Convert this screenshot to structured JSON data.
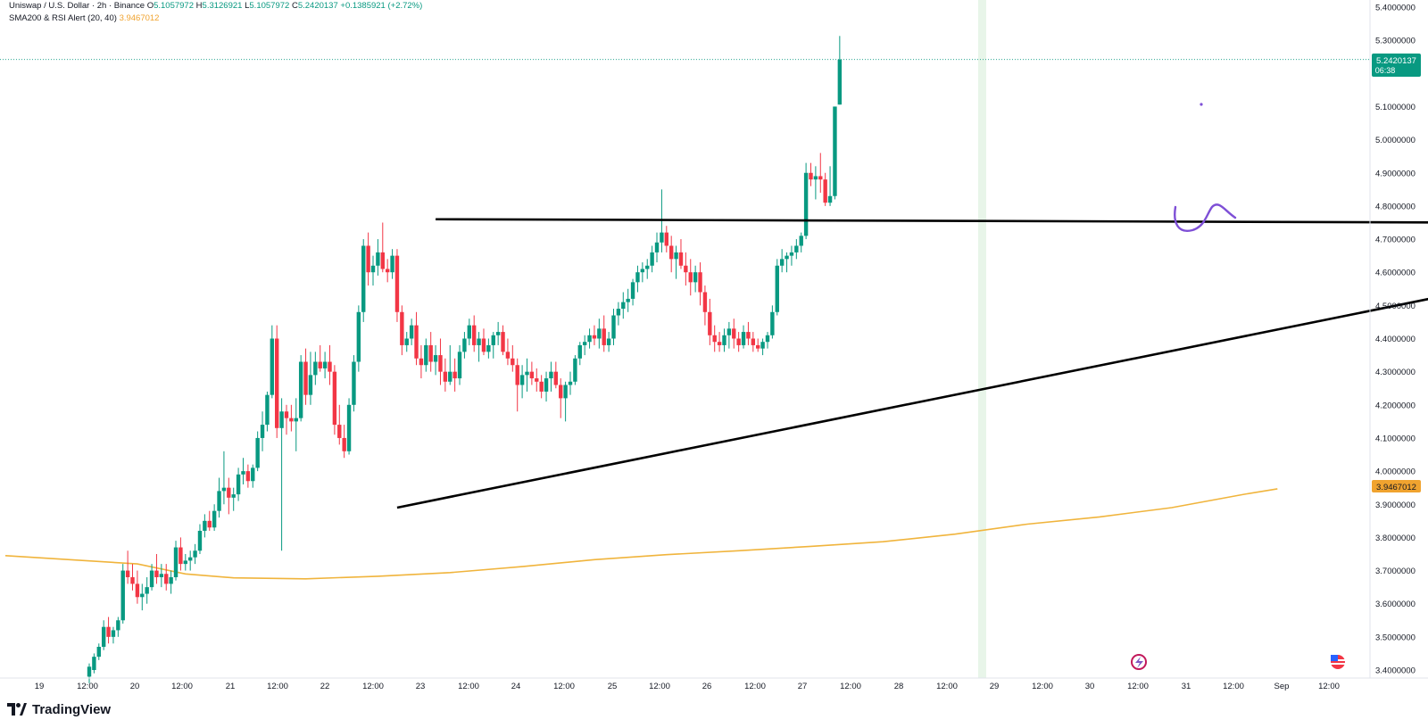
{
  "header": {
    "symbol": "Uniswap / U.S. Dollar · 2h · Binance",
    "o_label": "O",
    "o_value": "5.1057972",
    "h_label": "H",
    "h_value": "5.3126921",
    "l_label": "L",
    "l_value": "5.1057972",
    "c_label": "C",
    "c_value": "5.2420137",
    "change": "+0.1385921 (+2.72%)",
    "indicator_label": "SMA200 & RSI Alert (20, 40)",
    "indicator_value": "3.9467012"
  },
  "price_tag": {
    "price": "5.2420137",
    "countdown": "06:38"
  },
  "sma_tag": {
    "value": "3.9467012"
  },
  "brand": {
    "name": "TradingView"
  },
  "colors": {
    "up": "#089981",
    "down": "#f23645",
    "sma": "#f0b43c",
    "trendline": "#000000",
    "drawing": "#7e4fd6",
    "highlight": "#e8f5e9"
  },
  "chart_data": {
    "type": "candlestick",
    "symbol": "Uniswap / U.S. Dollar",
    "interval": "2h",
    "exchange": "Binance",
    "y_ticks": [
      "5.4000000",
      "5.3000000",
      "5.2000000",
      "5.1000000",
      "5.0000000",
      "4.9000000",
      "4.8000000",
      "4.7000000",
      "4.6000000",
      "4.5000000",
      "4.4000000",
      "4.3000000",
      "4.2000000",
      "4.1000000",
      "4.0000000",
      "3.9000000",
      "3.8000000",
      "3.7000000",
      "3.6000000",
      "3.5000000",
      "3.4000000"
    ],
    "y_range": [
      3.4,
      5.4
    ],
    "x_ticks": [
      "19",
      "12:00",
      "20",
      "12:00",
      "21",
      "12:00",
      "22",
      "12:00",
      "23",
      "12:00",
      "24",
      "12:00",
      "25",
      "12:00",
      "26",
      "12:00",
      "27",
      "12:00",
      "28",
      "12:00",
      "29",
      "12:00",
      "30",
      "12:00",
      "31",
      "12:00",
      "Sep",
      "12:00"
    ],
    "candles": [
      [
        3.38,
        3.42,
        3.36,
        3.41
      ],
      [
        3.4,
        3.45,
        3.39,
        3.44
      ],
      [
        3.44,
        3.48,
        3.43,
        3.47
      ],
      [
        3.47,
        3.55,
        3.46,
        3.53
      ],
      [
        3.53,
        3.56,
        3.48,
        3.5
      ],
      [
        3.5,
        3.53,
        3.48,
        3.52
      ],
      [
        3.52,
        3.56,
        3.5,
        3.55
      ],
      [
        3.55,
        3.72,
        3.54,
        3.7
      ],
      [
        3.7,
        3.76,
        3.66,
        3.68
      ],
      [
        3.68,
        3.72,
        3.64,
        3.66
      ],
      [
        3.66,
        3.7,
        3.6,
        3.62
      ],
      [
        3.62,
        3.66,
        3.58,
        3.63
      ],
      [
        3.63,
        3.68,
        3.6,
        3.65
      ],
      [
        3.65,
        3.72,
        3.64,
        3.7
      ],
      [
        3.7,
        3.75,
        3.66,
        3.68
      ],
      [
        3.68,
        3.72,
        3.65,
        3.69
      ],
      [
        3.69,
        3.72,
        3.64,
        3.66
      ],
      [
        3.66,
        3.7,
        3.63,
        3.68
      ],
      [
        3.68,
        3.79,
        3.67,
        3.77
      ],
      [
        3.77,
        3.8,
        3.7,
        3.72
      ],
      [
        3.72,
        3.75,
        3.7,
        3.73
      ],
      [
        3.73,
        3.76,
        3.7,
        3.74
      ],
      [
        3.74,
        3.78,
        3.72,
        3.76
      ],
      [
        3.76,
        3.84,
        3.75,
        3.82
      ],
      [
        3.82,
        3.87,
        3.8,
        3.85
      ],
      [
        3.85,
        3.88,
        3.82,
        3.83
      ],
      [
        3.83,
        3.9,
        3.82,
        3.88
      ],
      [
        3.88,
        3.98,
        3.86,
        3.94
      ],
      [
        3.94,
        4.06,
        3.9,
        3.95
      ],
      [
        3.95,
        3.98,
        3.87,
        3.92
      ],
      [
        3.92,
        3.95,
        3.88,
        3.93
      ],
      [
        3.93,
        4.01,
        3.91,
        3.99
      ],
      [
        3.99,
        4.04,
        3.96,
        4.0
      ],
      [
        4.0,
        4.02,
        3.95,
        3.97
      ],
      [
        3.97,
        4.02,
        3.95,
        4.01
      ],
      [
        4.01,
        4.12,
        4.0,
        4.1
      ],
      [
        4.1,
        4.18,
        4.06,
        4.14
      ],
      [
        4.14,
        4.24,
        4.12,
        4.23
      ],
      [
        4.23,
        4.44,
        4.22,
        4.4
      ],
      [
        4.4,
        4.44,
        4.1,
        4.13
      ],
      [
        4.13,
        4.22,
        3.76,
        4.18
      ],
      [
        4.18,
        4.2,
        4.11,
        4.16
      ],
      [
        4.16,
        4.2,
        4.12,
        4.15
      ],
      [
        4.15,
        4.22,
        4.06,
        4.16
      ],
      [
        4.16,
        4.35,
        4.15,
        4.33
      ],
      [
        4.33,
        4.37,
        4.2,
        4.23
      ],
      [
        4.23,
        4.36,
        4.2,
        4.29
      ],
      [
        4.29,
        4.36,
        4.26,
        4.33
      ],
      [
        4.33,
        4.38,
        4.3,
        4.31
      ],
      [
        4.31,
        4.36,
        4.28,
        4.33
      ],
      [
        4.33,
        4.38,
        4.26,
        4.3
      ],
      [
        4.3,
        4.32,
        4.11,
        4.14
      ],
      [
        4.14,
        4.2,
        4.08,
        4.1
      ],
      [
        4.1,
        4.14,
        4.04,
        4.06
      ],
      [
        4.06,
        4.22,
        4.05,
        4.2
      ],
      [
        4.2,
        4.35,
        4.18,
        4.33
      ],
      [
        4.33,
        4.5,
        4.3,
        4.48
      ],
      [
        4.48,
        4.7,
        4.45,
        4.68
      ],
      [
        4.68,
        4.72,
        4.56,
        4.6
      ],
      [
        4.6,
        4.65,
        4.56,
        4.62
      ],
      [
        4.62,
        4.7,
        4.59,
        4.66
      ],
      [
        4.66,
        4.75,
        4.6,
        4.61
      ],
      [
        4.61,
        4.64,
        4.57,
        4.6
      ],
      [
        4.6,
        4.67,
        4.58,
        4.65
      ],
      [
        4.65,
        4.67,
        4.45,
        4.48
      ],
      [
        4.48,
        4.5,
        4.35,
        4.38
      ],
      [
        4.38,
        4.42,
        4.36,
        4.4
      ],
      [
        4.4,
        4.46,
        4.38,
        4.44
      ],
      [
        4.44,
        4.48,
        4.32,
        4.34
      ],
      [
        4.34,
        4.38,
        4.28,
        4.32
      ],
      [
        4.32,
        4.4,
        4.3,
        4.38
      ],
      [
        4.38,
        4.42,
        4.3,
        4.33
      ],
      [
        4.33,
        4.38,
        4.29,
        4.35
      ],
      [
        4.35,
        4.4,
        4.26,
        4.3
      ],
      [
        4.3,
        4.34,
        4.24,
        4.27
      ],
      [
        4.27,
        4.38,
        4.26,
        4.3
      ],
      [
        4.3,
        4.34,
        4.24,
        4.28
      ],
      [
        4.28,
        4.38,
        4.26,
        4.36
      ],
      [
        4.36,
        4.42,
        4.34,
        4.4
      ],
      [
        4.4,
        4.46,
        4.38,
        4.44
      ],
      [
        4.44,
        4.47,
        4.36,
        4.38
      ],
      [
        4.38,
        4.42,
        4.33,
        4.4
      ],
      [
        4.4,
        4.43,
        4.35,
        4.36
      ],
      [
        4.36,
        4.4,
        4.34,
        4.38
      ],
      [
        4.38,
        4.42,
        4.34,
        4.41
      ],
      [
        4.41,
        4.45,
        4.38,
        4.42
      ],
      [
        4.42,
        4.44,
        4.35,
        4.36
      ],
      [
        4.36,
        4.4,
        4.32,
        4.34
      ],
      [
        4.34,
        4.38,
        4.3,
        4.32
      ],
      [
        4.32,
        4.34,
        4.18,
        4.26
      ],
      [
        4.26,
        4.32,
        4.22,
        4.29
      ],
      [
        4.29,
        4.34,
        4.24,
        4.3
      ],
      [
        4.3,
        4.33,
        4.26,
        4.28
      ],
      [
        4.28,
        4.31,
        4.24,
        4.27
      ],
      [
        4.27,
        4.29,
        4.22,
        4.24
      ],
      [
        4.24,
        4.3,
        4.21,
        4.28
      ],
      [
        4.28,
        4.33,
        4.24,
        4.3
      ],
      [
        4.3,
        4.33,
        4.25,
        4.26
      ],
      [
        4.26,
        4.28,
        4.16,
        4.22
      ],
      [
        4.22,
        4.27,
        4.15,
        4.26
      ],
      [
        4.26,
        4.3,
        4.23,
        4.27
      ],
      [
        4.27,
        4.35,
        4.26,
        4.34
      ],
      [
        4.34,
        4.39,
        4.32,
        4.38
      ],
      [
        4.38,
        4.41,
        4.35,
        4.39
      ],
      [
        4.39,
        4.43,
        4.37,
        4.41
      ],
      [
        4.41,
        4.44,
        4.38,
        4.4
      ],
      [
        4.4,
        4.46,
        4.37,
        4.43
      ],
      [
        4.43,
        4.47,
        4.36,
        4.38
      ],
      [
        4.38,
        4.42,
        4.36,
        4.4
      ],
      [
        4.4,
        4.49,
        4.38,
        4.47
      ],
      [
        4.47,
        4.51,
        4.44,
        4.49
      ],
      [
        4.49,
        4.54,
        4.46,
        4.51
      ],
      [
        4.51,
        4.55,
        4.48,
        4.52
      ],
      [
        4.52,
        4.58,
        4.5,
        4.57
      ],
      [
        4.57,
        4.62,
        4.54,
        4.6
      ],
      [
        4.6,
        4.63,
        4.57,
        4.61
      ],
      [
        4.61,
        4.64,
        4.58,
        4.62
      ],
      [
        4.62,
        4.68,
        4.6,
        4.66
      ],
      [
        4.66,
        4.72,
        4.63,
        4.69
      ],
      [
        4.69,
        4.85,
        4.66,
        4.72
      ],
      [
        4.72,
        4.74,
        4.66,
        4.68
      ],
      [
        4.68,
        4.71,
        4.6,
        4.64
      ],
      [
        4.64,
        4.68,
        4.58,
        4.66
      ],
      [
        4.66,
        4.7,
        4.61,
        4.62
      ],
      [
        4.62,
        4.66,
        4.56,
        4.6
      ],
      [
        4.6,
        4.64,
        4.53,
        4.57
      ],
      [
        4.57,
        4.62,
        4.54,
        4.6
      ],
      [
        4.6,
        4.63,
        4.5,
        4.54
      ],
      [
        4.54,
        4.56,
        4.44,
        4.48
      ],
      [
        4.48,
        4.52,
        4.38,
        4.41
      ],
      [
        4.41,
        4.44,
        4.36,
        4.39
      ],
      [
        4.39,
        4.42,
        4.36,
        4.38
      ],
      [
        4.38,
        4.43,
        4.36,
        4.41
      ],
      [
        4.41,
        4.45,
        4.37,
        4.43
      ],
      [
        4.43,
        4.46,
        4.37,
        4.4
      ],
      [
        4.4,
        4.42,
        4.36,
        4.38
      ],
      [
        4.38,
        4.44,
        4.37,
        4.42
      ],
      [
        4.42,
        4.45,
        4.38,
        4.4
      ],
      [
        4.4,
        4.42,
        4.36,
        4.38
      ],
      [
        4.38,
        4.4,
        4.36,
        4.37
      ],
      [
        4.37,
        4.4,
        4.35,
        4.39
      ],
      [
        4.39,
        4.42,
        4.37,
        4.41
      ],
      [
        4.41,
        4.5,
        4.4,
        4.48
      ],
      [
        4.48,
        4.64,
        4.47,
        4.62
      ],
      [
        4.62,
        4.67,
        4.6,
        4.64
      ],
      [
        4.64,
        4.66,
        4.6,
        4.65
      ],
      [
        4.65,
        4.68,
        4.62,
        4.66
      ],
      [
        4.66,
        4.7,
        4.64,
        4.68
      ],
      [
        4.68,
        4.72,
        4.66,
        4.71
      ],
      [
        4.71,
        4.93,
        4.7,
        4.9
      ],
      [
        4.9,
        4.93,
        4.86,
        4.88
      ],
      [
        4.88,
        4.92,
        4.82,
        4.89
      ],
      [
        4.89,
        4.96,
        4.84,
        4.88
      ],
      [
        4.88,
        4.9,
        4.8,
        4.81
      ],
      [
        4.81,
        4.92,
        4.8,
        4.83
      ],
      [
        4.83,
        5.1,
        4.82,
        5.1
      ],
      [
        5.106,
        5.313,
        5.106,
        5.242
      ]
    ],
    "sma200": [
      [
        0,
        3.745
      ],
      [
        10,
        3.72
      ],
      [
        20,
        3.69
      ],
      [
        30,
        3.678
      ],
      [
        45,
        3.675
      ],
      [
        60,
        3.683
      ],
      [
        75,
        3.694
      ],
      [
        90,
        3.712
      ],
      [
        105,
        3.733
      ],
      [
        120,
        3.748
      ],
      [
        135,
        3.76
      ],
      [
        150,
        3.773
      ],
      [
        165,
        3.787
      ],
      [
        180,
        3.81
      ],
      [
        195,
        3.84
      ],
      [
        210,
        3.862
      ],
      [
        225,
        3.89
      ],
      [
        240,
        3.93
      ],
      [
        247,
        3.9467
      ]
    ],
    "trendlines": [
      {
        "name": "resistance",
        "from": [
          72,
          4.76
        ],
        "to": [
          288,
          4.75
        ]
      },
      {
        "name": "support",
        "from": [
          64,
          3.89
        ],
        "to": [
          282,
          4.53
        ]
      }
    ]
  }
}
